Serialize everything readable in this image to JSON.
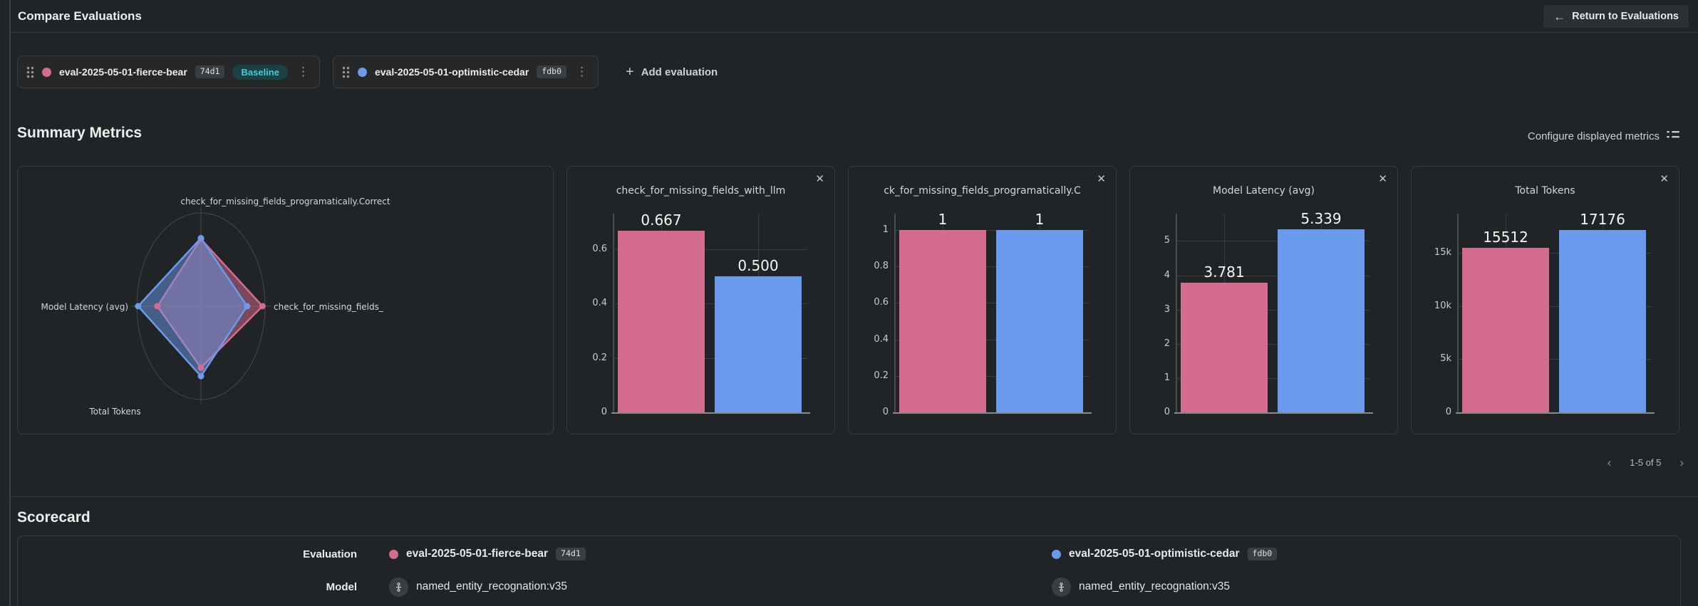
{
  "header": {
    "title": "Compare Evaluations",
    "return_button": {
      "label": "Return to Evaluations"
    }
  },
  "icons": {
    "arrow_left": "←",
    "plus": "+",
    "kebab": "⋮",
    "close": "✕",
    "chevron_left": "‹",
    "chevron_right": "›"
  },
  "colors": {
    "baseline_series_pink": "#d46c8e",
    "candidate_series_blue": "#6a9aec",
    "baseline_badge_teal": "#45cbd0",
    "page_background": "#212426"
  },
  "evaluation_bar": {
    "evaluations": [
      {
        "name": "eval-2025-05-01-fierce-bear",
        "hash": "74d1",
        "badge": "Baseline",
        "color": "#d46c8e"
      },
      {
        "name": "eval-2025-05-01-optimistic-cedar",
        "hash": "fdb0",
        "color": "#6a9aec"
      }
    ],
    "add_button": "Add evaluation"
  },
  "summary_metrics": {
    "heading": "Summary Metrics",
    "configure_button": "Configure displayed metrics",
    "pagination": {
      "label": "1-5 of 5"
    }
  },
  "scorecard": {
    "heading": "Scorecard",
    "row_labels": {
      "evaluation": "Evaluation",
      "model": "Model"
    },
    "columns": [
      {
        "eval_name": "eval-2025-05-01-fierce-bear",
        "hash": "74d1",
        "color": "#d46c8e",
        "model": "named_entity_recognation:v35"
      },
      {
        "eval_name": "eval-2025-05-01-optimistic-cedar",
        "hash": "fdb0",
        "color": "#6a9aec",
        "model": "named_entity_recognation:v35"
      }
    ]
  },
  "chart_data": [
    {
      "type": "radar",
      "series": [
        {
          "name": "eval-2025-05-01-fierce-bear",
          "color": "#d46c8e"
        },
        {
          "name": "eval-2025-05-01-optimistic-cedar",
          "color": "#6a9aec"
        }
      ],
      "axes": [
        {
          "position": "top",
          "label": "check_for_missing_fields_programatically.Correct",
          "values": [
            1,
            1
          ],
          "plot_fractions": [
            0.72,
            0.73
          ]
        },
        {
          "position": "right",
          "label": "check_for_missing_fields_",
          "values": [
            0.667,
            0.5
          ],
          "plot_fractions": [
            0.96,
            0.72
          ]
        },
        {
          "position": "bottom",
          "label": "Total Tokens",
          "values": [
            15512,
            17176
          ],
          "plot_fractions": [
            0.66,
            0.75
          ]
        },
        {
          "position": "left",
          "label": "Model Latency (avg)",
          "values": [
            3.781,
            5.339
          ],
          "plot_fractions": [
            0.68,
            0.98
          ]
        }
      ],
      "grid": "single outer ring, cross axes",
      "legend": "none"
    },
    {
      "type": "bar",
      "title": "check_for_missing_fields_with_llm",
      "ymax": 0.73,
      "yticks": [
        {
          "v": 0,
          "label": "0"
        },
        {
          "v": 0.2,
          "label": "0.2"
        },
        {
          "v": 0.4,
          "label": "0.4"
        },
        {
          "v": 0.6,
          "label": "0.6"
        }
      ],
      "bars": [
        {
          "name": "eval-2025-05-01-fierce-bear",
          "value": 0.667,
          "label": "0.667",
          "color": "#d46c8e"
        },
        {
          "name": "eval-2025-05-01-optimistic-cedar",
          "value": 0.5,
          "label": "0.500",
          "color": "#6a9aec"
        }
      ]
    },
    {
      "type": "bar",
      "title": "ck_for_missing_fields_programatically.C",
      "ymax": 1.09,
      "yticks": [
        {
          "v": 0,
          "label": "0"
        },
        {
          "v": 0.2,
          "label": "0.2"
        },
        {
          "v": 0.4,
          "label": "0.4"
        },
        {
          "v": 0.6,
          "label": "0.6"
        },
        {
          "v": 0.8,
          "label": "0.8"
        },
        {
          "v": 1,
          "label": "1"
        }
      ],
      "bars": [
        {
          "name": "eval-2025-05-01-fierce-bear",
          "value": 1,
          "label": "1",
          "color": "#d46c8e"
        },
        {
          "name": "eval-2025-05-01-optimistic-cedar",
          "value": 1,
          "label": "1",
          "color": "#6a9aec"
        }
      ]
    },
    {
      "type": "bar",
      "title": "Model Latency (avg)",
      "ymax": 5.8,
      "yticks": [
        {
          "v": 0,
          "label": "0"
        },
        {
          "v": 1,
          "label": "1"
        },
        {
          "v": 2,
          "label": "2"
        },
        {
          "v": 3,
          "label": "3"
        },
        {
          "v": 4,
          "label": "4"
        },
        {
          "v": 5,
          "label": "5"
        }
      ],
      "bars": [
        {
          "name": "eval-2025-05-01-fierce-bear",
          "value": 3.781,
          "label": "3.781",
          "color": "#d46c8e"
        },
        {
          "name": "eval-2025-05-01-optimistic-cedar",
          "value": 5.339,
          "label": "5.339",
          "color": "#6a9aec"
        }
      ]
    },
    {
      "type": "bar",
      "title": "Total Tokens",
      "ymax": 18700,
      "yticks": [
        {
          "v": 0,
          "label": "0"
        },
        {
          "v": 5000,
          "label": "5k"
        },
        {
          "v": 10000,
          "label": "10k"
        },
        {
          "v": 15000,
          "label": "15k"
        }
      ],
      "bars": [
        {
          "name": "eval-2025-05-01-fierce-bear",
          "value": 15512,
          "label": "15512",
          "color": "#d46c8e"
        },
        {
          "name": "eval-2025-05-01-optimistic-cedar",
          "value": 17176,
          "label": "17176",
          "color": "#6a9aec"
        }
      ]
    }
  ]
}
